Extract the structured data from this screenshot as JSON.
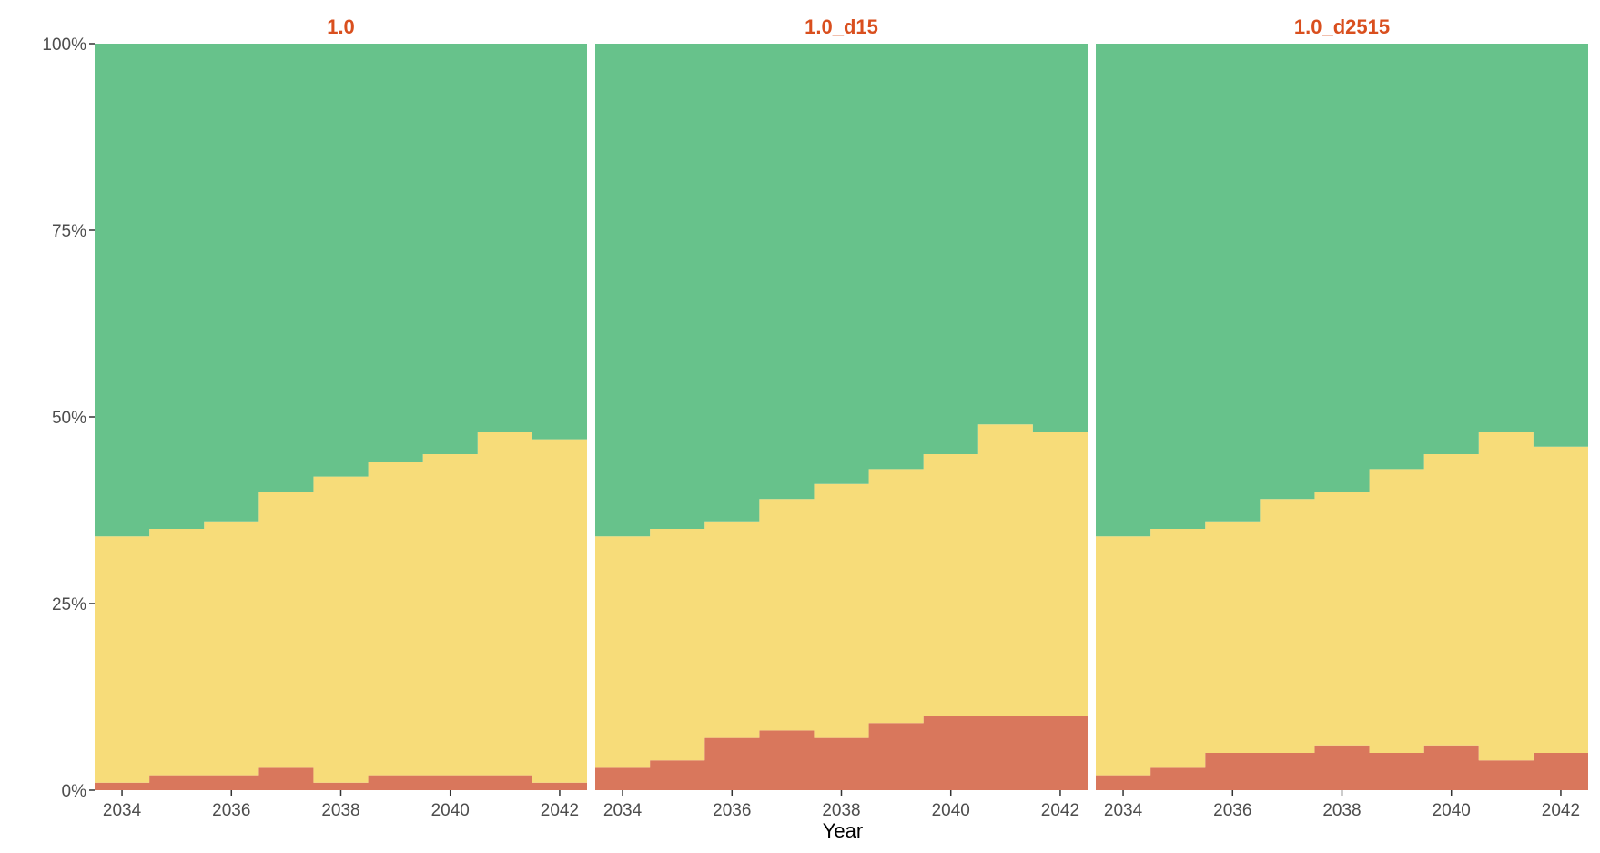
{
  "chart_data": {
    "type": "area",
    "stacked": true,
    "percent": true,
    "step": true,
    "xlabel": "Year",
    "ylabel": "",
    "x": [
      2034,
      2035,
      2036,
      2037,
      2038,
      2039,
      2040,
      2041,
      2042
    ],
    "xlim": [
      2033.5,
      2042.5
    ],
    "x_ticks": [
      "2034",
      "2036",
      "2038",
      "2040",
      "2042"
    ],
    "ylim": [
      0,
      100
    ],
    "y_ticks": [
      "0%",
      "25%",
      "50%",
      "75%",
      "100%"
    ],
    "grid": false,
    "legend": "none",
    "colors": {
      "bottom": "#d9775c",
      "middle": "#f7dc79",
      "top": "#67c28b",
      "title": "#d94f1e"
    },
    "panels": [
      {
        "title": "1.0",
        "series": [
          {
            "values": [
              1,
              2,
              2,
              3,
              1,
              2,
              2,
              2,
              1
            ]
          },
          {
            "values": [
              33,
              33,
              34,
              37,
              41,
              42,
              43,
              46,
              46
            ]
          },
          {
            "values": [
              66,
              65,
              64,
              60,
              58,
              56,
              55,
              52,
              53
            ]
          }
        ]
      },
      {
        "title": "1.0_d15",
        "series": [
          {
            "values": [
              3,
              4,
              7,
              8,
              7,
              9,
              10,
              10,
              10
            ]
          },
          {
            "values": [
              31,
              31,
              29,
              31,
              34,
              34,
              35,
              39,
              38
            ]
          },
          {
            "values": [
              66,
              65,
              64,
              61,
              59,
              57,
              55,
              51,
              52
            ]
          }
        ]
      },
      {
        "title": "1.0_d2515",
        "series": [
          {
            "values": [
              2,
              3,
              5,
              5,
              6,
              5,
              6,
              4,
              5
            ]
          },
          {
            "values": [
              32,
              32,
              31,
              34,
              34,
              38,
              39,
              44,
              41
            ]
          },
          {
            "values": [
              66,
              65,
              64,
              61,
              60,
              57,
              55,
              52,
              54
            ]
          }
        ]
      }
    ]
  }
}
